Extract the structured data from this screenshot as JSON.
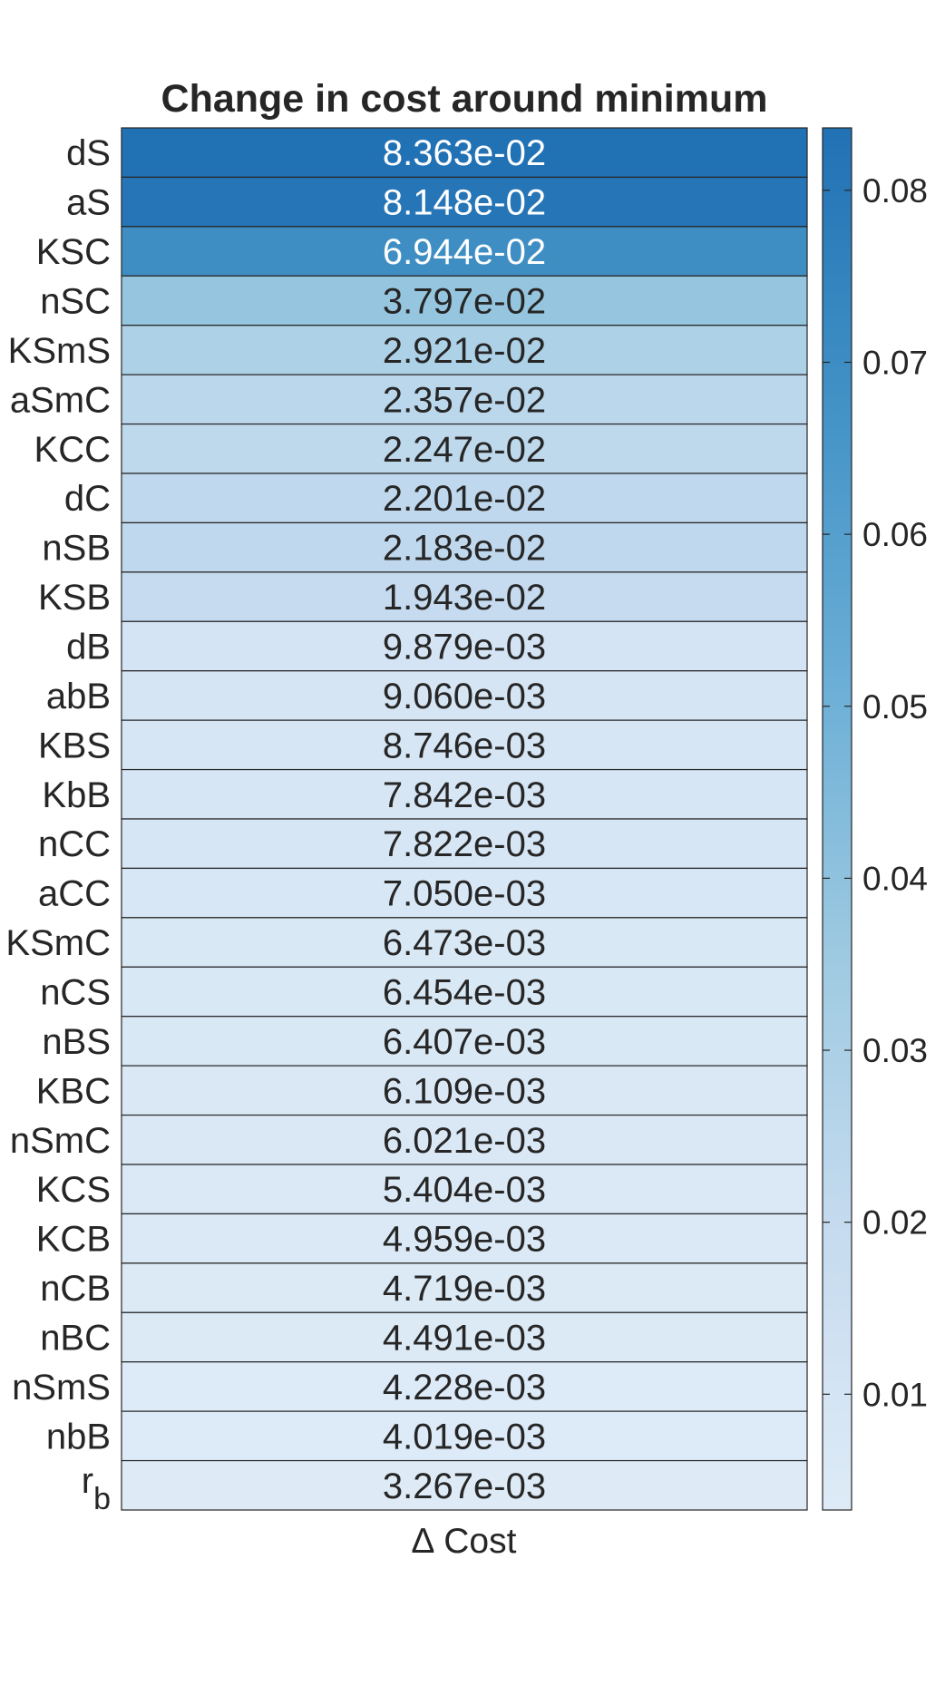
{
  "chart_data": {
    "type": "heatmap",
    "title": "Change in cost around minimum",
    "xlabel": "∆ Cost",
    "ylabel": "",
    "rows": [
      {
        "label": "dS",
        "value": 0.08363,
        "text": "8.363e-02"
      },
      {
        "label": "aS",
        "value": 0.08148,
        "text": "8.148e-02"
      },
      {
        "label": "KSC",
        "value": 0.06944,
        "text": "6.944e-02"
      },
      {
        "label": "nSC",
        "value": 0.03797,
        "text": "3.797e-02"
      },
      {
        "label": "KSmS",
        "value": 0.02921,
        "text": "2.921e-02"
      },
      {
        "label": "aSmC",
        "value": 0.02357,
        "text": "2.357e-02"
      },
      {
        "label": "KCC",
        "value": 0.02247,
        "text": "2.247e-02"
      },
      {
        "label": "dC",
        "value": 0.02201,
        "text": "2.201e-02"
      },
      {
        "label": "nSB",
        "value": 0.02183,
        "text": "2.183e-02"
      },
      {
        "label": "KSB",
        "value": 0.01943,
        "text": "1.943e-02"
      },
      {
        "label": "dB",
        "value": 0.009879,
        "text": "9.879e-03"
      },
      {
        "label": "abB",
        "value": 0.00906,
        "text": "9.060e-03"
      },
      {
        "label": "KBS",
        "value": 0.008746,
        "text": "8.746e-03"
      },
      {
        "label": "KbB",
        "value": 0.007842,
        "text": "7.842e-03"
      },
      {
        "label": "nCC",
        "value": 0.007822,
        "text": "7.822e-03"
      },
      {
        "label": "aCC",
        "value": 0.00705,
        "text": "7.050e-03"
      },
      {
        "label": "KSmC",
        "value": 0.006473,
        "text": "6.473e-03"
      },
      {
        "label": "nCS",
        "value": 0.006454,
        "text": "6.454e-03"
      },
      {
        "label": "nBS",
        "value": 0.006407,
        "text": "6.407e-03"
      },
      {
        "label": "KBC",
        "value": 0.006109,
        "text": "6.109e-03"
      },
      {
        "label": "nSmC",
        "value": 0.006021,
        "text": "6.021e-03"
      },
      {
        "label": "KCS",
        "value": 0.005404,
        "text": "5.404e-03"
      },
      {
        "label": "KCB",
        "value": 0.004959,
        "text": "4.959e-03"
      },
      {
        "label": "nCB",
        "value": 0.004719,
        "text": "4.719e-03"
      },
      {
        "label": "nBC",
        "value": 0.004491,
        "text": "4.491e-03"
      },
      {
        "label": "nSmS",
        "value": 0.004228,
        "text": "4.228e-03"
      },
      {
        "label": "nbB",
        "value": 0.004019,
        "text": "4.019e-03"
      },
      {
        "label": "r",
        "label_subscript": "b",
        "value": 0.003267,
        "text": "3.267e-03"
      }
    ],
    "colorbar": {
      "range": [
        0.003267,
        0.08363
      ],
      "ticks": [
        0.01,
        0.02,
        0.03,
        0.04,
        0.05,
        0.06,
        0.07,
        0.08
      ],
      "tick_labels": [
        "0.01",
        "0.02",
        "0.03",
        "0.04",
        "0.05",
        "0.06",
        "0.07",
        "0.08"
      ],
      "placement": "right",
      "colormap": [
        "#deebf7",
        "#c6dbef",
        "#9ecae1",
        "#6baed6",
        "#4292c6",
        "#2171b5"
      ]
    },
    "colors": {
      "text_dark": "#262626",
      "text_light": "#ffffff",
      "cell_border": "#262626"
    }
  }
}
